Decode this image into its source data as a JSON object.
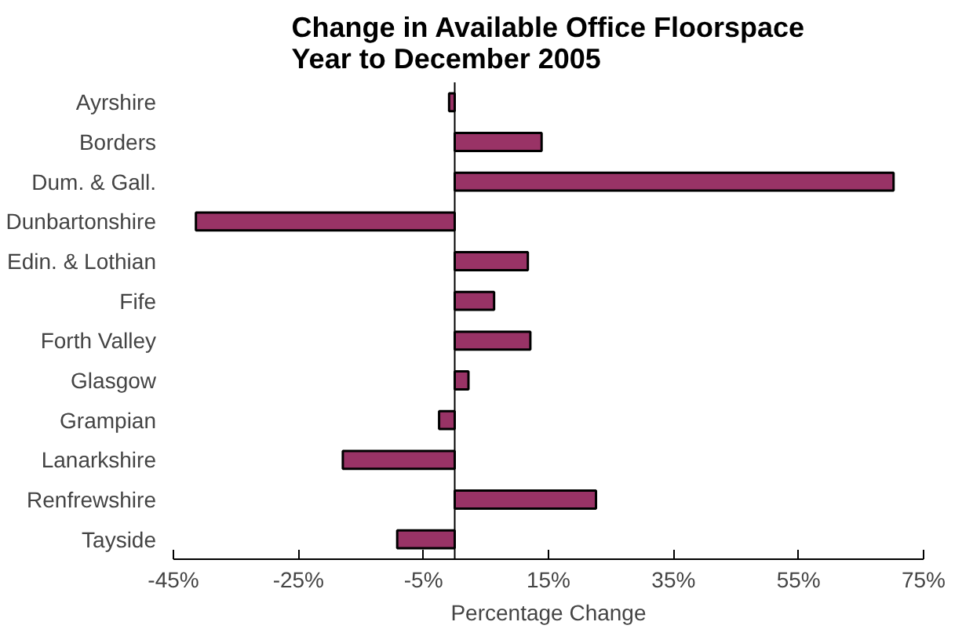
{
  "chart_data": {
    "type": "bar",
    "orientation": "horizontal",
    "title": "Change in Available Office Floorspace\nYear to December 2005",
    "xlabel": "Percentage Change",
    "categories": [
      "Ayrshire",
      "Borders",
      "Dum. & Gall.",
      "Dunbartonshire",
      "Edin. & Lothian",
      "Fife",
      "Forth Valley",
      "Glasgow",
      "Grampian",
      "Lanarkshire",
      "Renfrewshire",
      "Tayside"
    ],
    "values": [
      -0.9,
      13.9,
      70.2,
      -41.4,
      11.7,
      6.3,
      12.1,
      2.2,
      -2.5,
      -17.9,
      22.6,
      -9.2
    ],
    "color": "#993366",
    "xlim": [
      -45,
      75
    ],
    "xticks": [
      {
        "value": -45,
        "label": "-45%"
      },
      {
        "value": -25,
        "label": "-25%"
      },
      {
        "value": -5,
        "label": "-5%"
      },
      {
        "value": 15,
        "label": "15%"
      },
      {
        "value": 35,
        "label": "35%"
      },
      {
        "value": 55,
        "label": "55%"
      },
      {
        "value": 75,
        "label": "75%"
      }
    ],
    "grid": false
  }
}
